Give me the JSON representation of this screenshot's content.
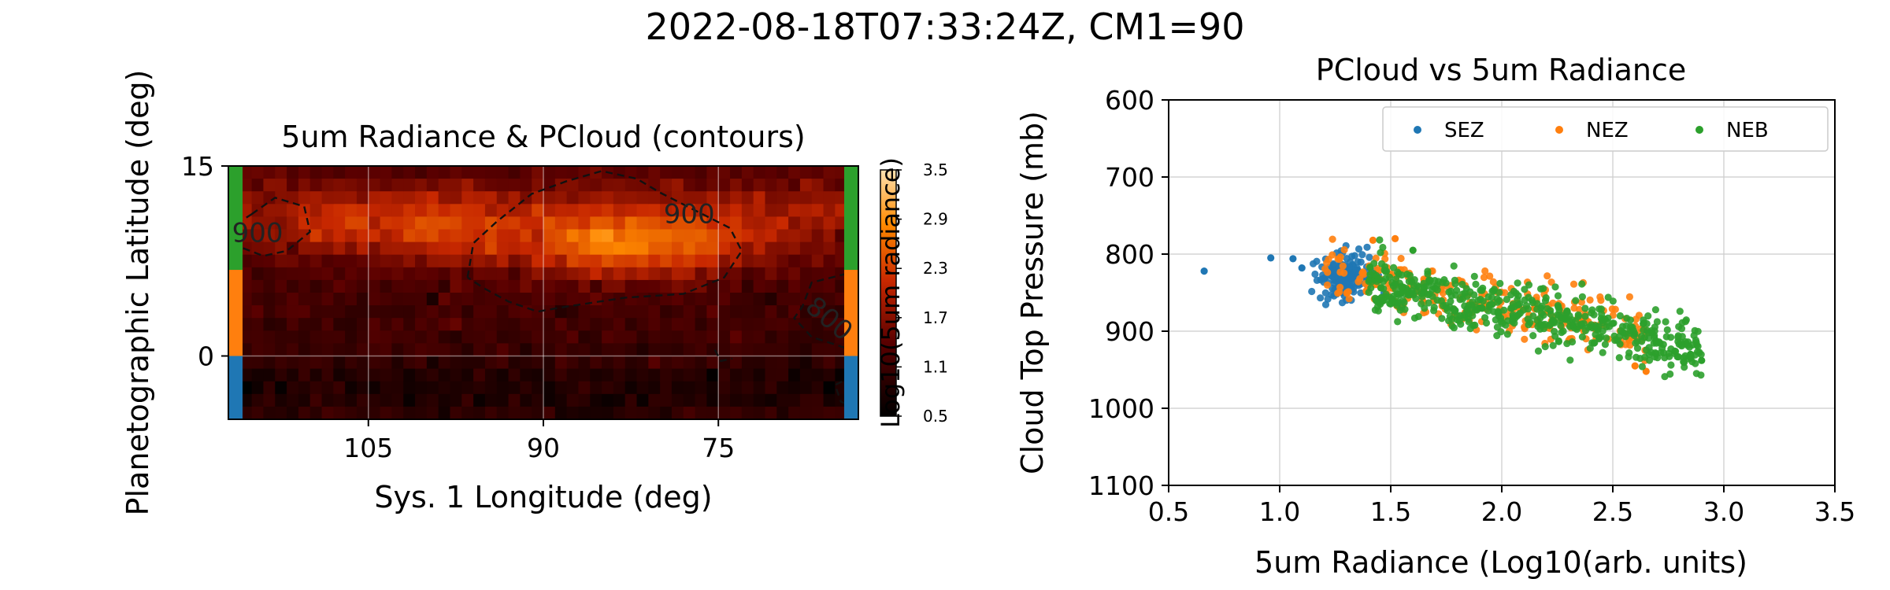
{
  "figure": {
    "suptitle": "2022-08-18T07:33:24Z, CM1=90"
  },
  "chart_data": [
    {
      "type": "heatmap",
      "title": "5um Radiance & PCloud (contours)",
      "xlabel": "Sys. 1 Longitude (deg)",
      "ylabel": "Planetographic Latitude (deg)",
      "xlim": [
        117,
        63
      ],
      "ylim": [
        -5,
        15
      ],
      "xticks": [
        "105",
        "90",
        "75"
      ],
      "xtick_values": [
        105,
        90,
        75
      ],
      "yticks": [
        "15",
        "0"
      ],
      "ytick_values": [
        15,
        0
      ],
      "colorbar": {
        "label": "Log10(5um radiance)",
        "ticks": [
          "3.5",
          "2.9",
          "2.3",
          "1.7",
          "1.1",
          "0.5"
        ],
        "tick_values": [
          3.5,
          2.9,
          2.3,
          1.7,
          1.1,
          0.5
        ],
        "range": [
          0.5,
          3.5
        ]
      },
      "contour_labels": [
        {
          "text": "900",
          "lon": 114.5,
          "lat": 9
        },
        {
          "text": "900",
          "lon": 77.5,
          "lat": 10.5
        },
        {
          "text": "800",
          "lon": 66,
          "lat": 2.4
        }
      ],
      "zone_bands": [
        {
          "zone": "SEZ",
          "color": "#1f77b4",
          "lat_range": [
            -5,
            0
          ]
        },
        {
          "zone": "NEZ",
          "color": "#ff7f0e",
          "lat_range": [
            0,
            6.8
          ]
        },
        {
          "zone": "NEB",
          "color": "#2ca02c",
          "lat_range": [
            6.8,
            15
          ]
        }
      ]
    },
    {
      "type": "scatter",
      "title": "PCloud vs 5um Radiance",
      "xlabel": "5um Radiance (Log10(arb. units)",
      "ylabel": "Cloud Top Pressure (mb)",
      "xlim": [
        0.5,
        3.5
      ],
      "ylim": [
        600,
        1100
      ],
      "y_inverted": true,
      "grid": true,
      "legend_position": "top-right",
      "xticks": [
        "0.5",
        "1.0",
        "1.5",
        "2.0",
        "2.5",
        "3.0",
        "3.5"
      ],
      "xtick_values": [
        0.5,
        1.0,
        1.5,
        2.0,
        2.5,
        3.0,
        3.5
      ],
      "yticks": [
        "600",
        "700",
        "800",
        "900",
        "1000",
        "1100"
      ],
      "ytick_values": [
        600,
        700,
        800,
        900,
        1000,
        1100
      ],
      "series": [
        {
          "name": "SEZ",
          "color": "#1f77b4",
          "x_range": [
            1.15,
            1.45
          ],
          "y_center": 830,
          "count": 180,
          "outliers": [
            [
              0.66,
              822
            ],
            [
              0.96,
              805
            ],
            [
              1.06,
              806
            ],
            [
              1.1,
              818
            ]
          ]
        },
        {
          "name": "NEZ",
          "color": "#ff7f0e",
          "x_range": [
            1.2,
            2.65
          ],
          "y_center": 860,
          "count": 260,
          "outliers": [
            [
              1.42,
              782
            ],
            [
              1.52,
              780
            ],
            [
              2.65,
              952
            ],
            [
              2.6,
              945
            ]
          ]
        },
        {
          "name": "NEB",
          "color": "#2ca02c",
          "x_range": [
            1.4,
            2.9
          ],
          "y_center": 880,
          "count": 520,
          "outliers": [
            [
              2.9,
              938
            ],
            [
              2.85,
              930
            ],
            [
              1.6,
              795
            ]
          ]
        }
      ]
    }
  ]
}
